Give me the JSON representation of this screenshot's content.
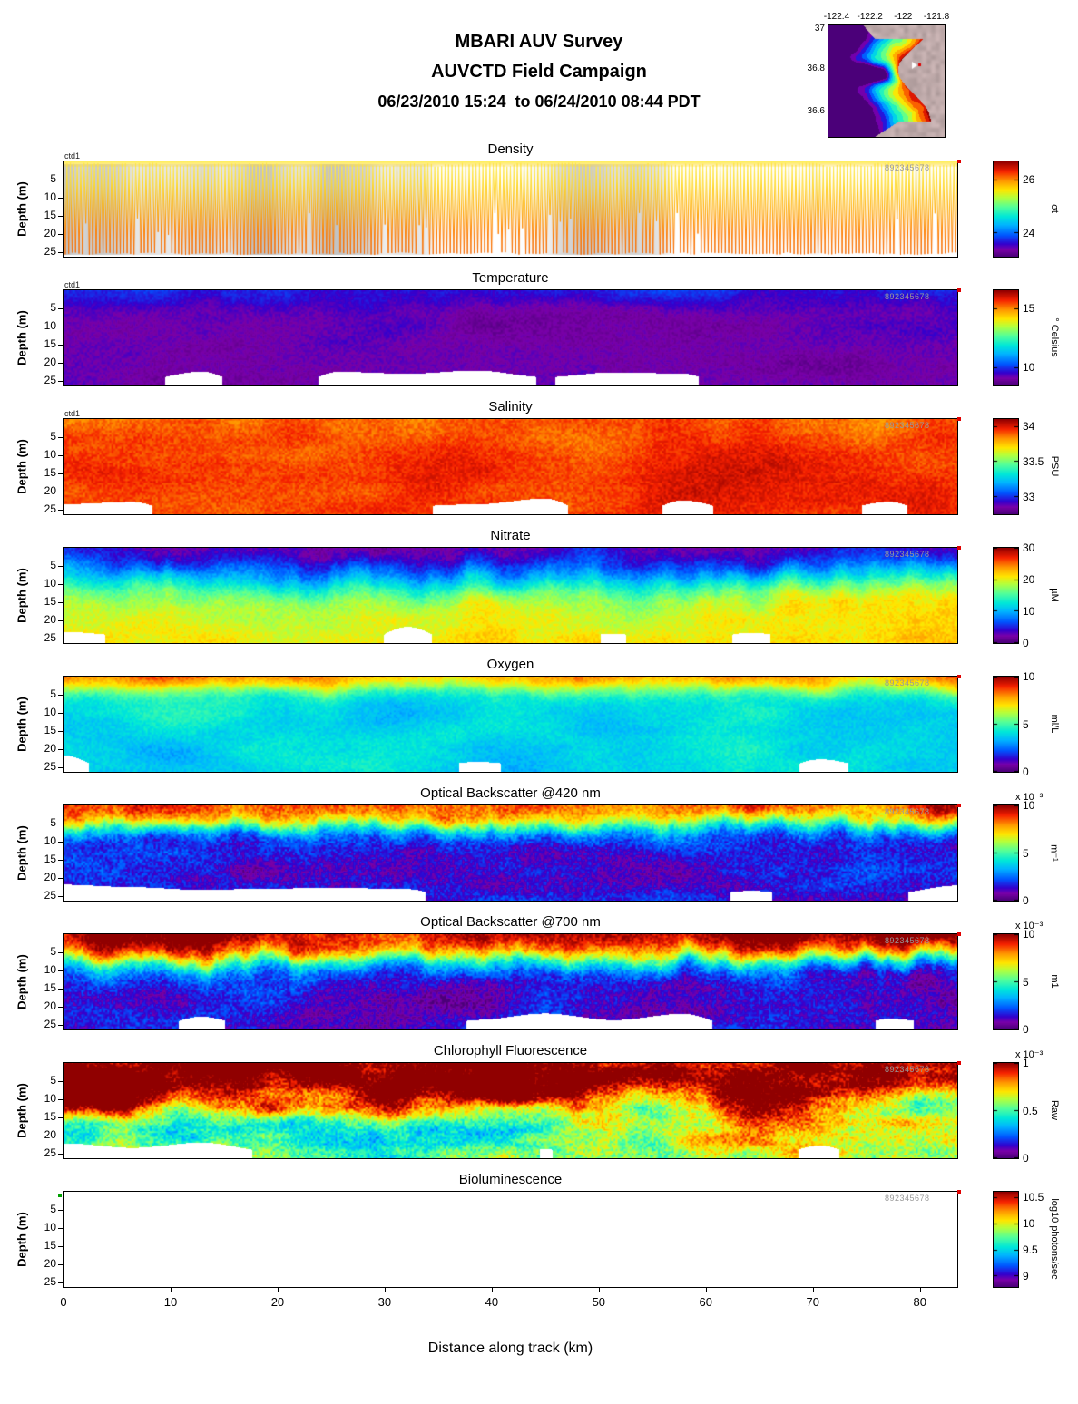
{
  "header": {
    "title": "MBARI AUV Survey",
    "subtitle": "AUVCTD Field Campaign",
    "date_range": "06/23/2010 15:24  to 06/24/2010 08:44 PDT"
  },
  "map_inset": {
    "lon_ticks": [
      "-122.4",
      "-122.2",
      "-122",
      "-121.8"
    ],
    "lat_ticks": [
      "37",
      "36.8",
      "36.6"
    ]
  },
  "axes": {
    "x_label": "Distance along track (km)",
    "x_ticks": [
      0,
      10,
      20,
      30,
      40,
      50,
      60,
      70,
      80
    ],
    "x_max_km": 83.5,
    "y_label": "Depth (m)",
    "y_ticks": [
      5,
      10,
      15,
      20,
      25
    ],
    "y_max_depth_m": 26.3
  },
  "annotations": {
    "waypoint_text": "8 9 2 3 4 5 6 7 8"
  },
  "colormap": {
    "stops": [
      [
        0.0,
        "#4b0079"
      ],
      [
        0.07,
        "#7a00a8"
      ],
      [
        0.13,
        "#3300cd"
      ],
      [
        0.22,
        "#0055ff"
      ],
      [
        0.33,
        "#00b4ff"
      ],
      [
        0.42,
        "#00e8d8"
      ],
      [
        0.52,
        "#52ff9a"
      ],
      [
        0.62,
        "#b4ff3c"
      ],
      [
        0.7,
        "#ffe600"
      ],
      [
        0.8,
        "#ff9500"
      ],
      [
        0.9,
        "#f52000"
      ],
      [
        1.0,
        "#900000"
      ]
    ]
  },
  "chart_data": [
    {
      "type": "heatmap",
      "title": "Density",
      "instrument_label": "ctd1",
      "colorbar_label": "σt",
      "colorbar_ticks": [
        24,
        26
      ],
      "scale_note": null,
      "vmin": 23.1,
      "vmax": 26.7,
      "x_range_km": [
        0,
        83.5
      ],
      "depth_range_m": [
        0,
        26.3
      ],
      "render": {
        "mode": "profiles",
        "seed": 1,
        "line_colors_top_to_bottom": [
          "#ffef5a",
          "#ffd825",
          "#ffaa00",
          "#ff7d00",
          "#f26500"
        ],
        "background": "#ffffff",
        "gap_color": "#b9b9b9",
        "surface_value": 25.2,
        "deep_value": 26.3
      }
    },
    {
      "type": "heatmap",
      "title": "Temperature",
      "instrument_label": "ctd1",
      "colorbar_label": "° Celsius",
      "colorbar_ticks": [
        10,
        15
      ],
      "scale_note": null,
      "vmin": 8.5,
      "vmax": 16.5,
      "x_range_km": [
        0,
        83.5
      ],
      "depth_range_m": [
        0,
        26.3
      ],
      "render": {
        "mode": "section",
        "seed": 2,
        "surface_value": 10.1,
        "deep_value": 9.1,
        "surface_variability": 0.7,
        "interface_depth_m": 3.2,
        "interface_variability_m": 1.8,
        "interface_wiggles": 26,
        "sharpness_m": 1.6,
        "patch_amp": 0.45,
        "patch_fx": 6,
        "patch_fy": 2.5,
        "speckle_amp": 0.22,
        "bottom_gaps": true
      }
    },
    {
      "type": "heatmap",
      "title": "Salinity",
      "instrument_label": "ctd1",
      "colorbar_label": "PSU",
      "colorbar_ticks": [
        33,
        33.5,
        34
      ],
      "scale_note": null,
      "vmin": 32.75,
      "vmax": 34.1,
      "x_range_km": [
        0,
        83.5
      ],
      "depth_range_m": [
        0,
        26.3
      ],
      "render": {
        "mode": "section",
        "seed": 3,
        "surface_value": 33.9,
        "deep_value": 33.96,
        "surface_variability": 0.1,
        "interface_depth_m": 6,
        "interface_variability_m": 2,
        "interface_wiggles": 18,
        "sharpness_m": 3,
        "patch_amp": 0.1,
        "patch_fx": 7,
        "patch_fy": 2.5,
        "speckle_amp": 0.05,
        "bottom_gaps": true
      }
    },
    {
      "type": "heatmap",
      "title": "Nitrate",
      "instrument_label": null,
      "colorbar_label": "µM",
      "colorbar_ticks": [
        0,
        10,
        20,
        30
      ],
      "scale_note": null,
      "vmin": 0,
      "vmax": 30,
      "x_range_km": [
        0,
        83.5
      ],
      "depth_range_m": [
        0,
        26.3
      ],
      "render": {
        "mode": "section",
        "seed": 4,
        "surface_value": 2,
        "deep_value": 21.5,
        "surface_variability": 1.5,
        "interface_depth_m": 8.5,
        "interface_variability_m": 3.5,
        "interface_wiggles": 22,
        "sharpness_m": 3.2,
        "patch_amp": 3.5,
        "patch_fx": 8,
        "patch_fy": 2.5,
        "speckle_amp": 1.2,
        "bottom_gaps": true
      }
    },
    {
      "type": "heatmap",
      "title": "Oxygen",
      "instrument_label": null,
      "colorbar_label": "ml/L",
      "colorbar_ticks": [
        0,
        5,
        10
      ],
      "scale_note": null,
      "vmin": 0,
      "vmax": 10,
      "x_range_km": [
        0,
        83.5
      ],
      "depth_range_m": [
        0,
        26.3
      ],
      "render": {
        "mode": "section",
        "seed": 5,
        "surface_value": 8.2,
        "deep_value": 3.9,
        "surface_variability": 0.8,
        "interface_depth_m": 3.4,
        "interface_variability_m": 1.6,
        "interface_wiggles": 28,
        "sharpness_m": 1.5,
        "patch_amp": 0.9,
        "patch_fx": 8,
        "patch_fy": 2.5,
        "speckle_amp": 0.35,
        "bottom_gaps": true
      }
    },
    {
      "type": "heatmap",
      "title": "Optical Backscatter @420 nm",
      "instrument_label": null,
      "colorbar_label": "m⁻¹",
      "colorbar_ticks": [
        0,
        5,
        10
      ],
      "scale_note": "x 10⁻³",
      "vmin": 0,
      "vmax": 10,
      "x_range_km": [
        0,
        83.5
      ],
      "depth_range_m": [
        0,
        26.3
      ],
      "render": {
        "mode": "section",
        "seed": 6,
        "surface_value": 8.8,
        "deep_value": 1.4,
        "surface_variability": 1.2,
        "interface_depth_m": 5.5,
        "interface_variability_m": 2.6,
        "interface_wiggles": 30,
        "sharpness_m": 1.7,
        "patch_amp": 1.3,
        "patch_fx": 9,
        "patch_fy": 2.8,
        "speckle_amp": 0.7,
        "bottom_gaps": true
      }
    },
    {
      "type": "heatmap",
      "title": "Optical Backscatter @700 nm",
      "instrument_label": null,
      "colorbar_label": "m1",
      "colorbar_ticks": [
        0,
        5,
        10
      ],
      "scale_note": "x 10⁻³",
      "vmin": 0,
      "vmax": 10,
      "x_range_km": [
        0,
        83.5
      ],
      "depth_range_m": [
        0,
        26.3
      ],
      "render": {
        "mode": "section",
        "seed": 7,
        "surface_value": 10.3,
        "deep_value": 1.2,
        "surface_variability": 1.0,
        "interface_depth_m": 6.5,
        "interface_variability_m": 3.0,
        "interface_wiggles": 30,
        "sharpness_m": 2.1,
        "patch_amp": 1.3,
        "patch_fx": 9,
        "patch_fy": 2.8,
        "speckle_amp": 0.7,
        "bottom_gaps": true
      }
    },
    {
      "type": "heatmap",
      "title": "Chlorophyll Fluorescence",
      "instrument_label": null,
      "colorbar_label": "Raw",
      "colorbar_ticks": [
        0,
        0.5,
        1
      ],
      "scale_note": "x 10⁻³",
      "vmin": 0,
      "vmax": 1,
      "x_range_km": [
        0,
        83.5
      ],
      "depth_range_m": [
        0,
        26.3
      ],
      "render": {
        "mode": "section",
        "seed": 8,
        "surface_value": 1.15,
        "deep_value": 0.5,
        "surface_variability": 0.2,
        "interface_depth_m": 12,
        "interface_variability_m": 5,
        "interface_wiggles": 14,
        "sharpness_m": 2.6,
        "patch_amp": 0.38,
        "patch_fx": 8,
        "patch_fy": 3,
        "speckle_amp": 0.1,
        "bottom_gaps": true
      }
    },
    {
      "type": "heatmap",
      "title": "Bioluminescence",
      "instrument_label": null,
      "colorbar_label": "log10 photons/sec",
      "colorbar_ticks": [
        9,
        9.5,
        10,
        10.5
      ],
      "scale_note": null,
      "vmin": 8.8,
      "vmax": 10.6,
      "x_range_km": [
        0,
        83.5
      ],
      "depth_range_m": [
        0,
        26.3
      ],
      "render": {
        "mode": "empty",
        "seed": 9,
        "start_marker": true
      }
    }
  ]
}
